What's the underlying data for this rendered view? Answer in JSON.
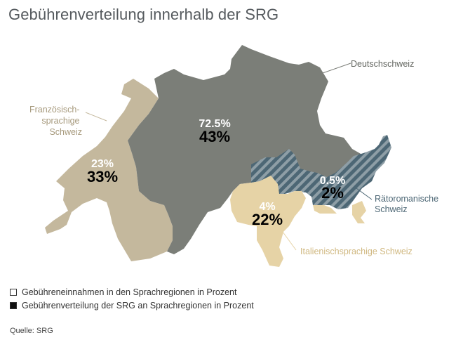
{
  "title": "Gebührenverteilung innerhalb der SRG",
  "regions": [
    {
      "key": "de",
      "label": "Deutschschweiz",
      "income": "72.5%",
      "distribution": "43%",
      "color": "#7b7e78"
    },
    {
      "key": "fr",
      "label": "Französisch-sprachige Schweiz",
      "label_lines": [
        "Französisch-",
        "sprachige",
        "Schweiz"
      ],
      "income": "23%",
      "distribution": "33%",
      "color": "#c4b89d"
    },
    {
      "key": "it",
      "label": "Italienischsprachige Schweiz",
      "income": "4%",
      "distribution": "22%",
      "color": "#e6d3a6"
    },
    {
      "key": "rm",
      "label": "Rätoromanische Schweiz",
      "label_lines": [
        "Rätoromanische",
        "Schweiz"
      ],
      "income": "0.5%",
      "distribution": "2%",
      "color": "#4d6775"
    }
  ],
  "legend": {
    "income": "Gebühreneinnahmen in den Sprachregionen in Prozent",
    "distribution": "Gebührenverteilung der SRG an Sprachregionen in Prozent"
  },
  "source": "Quelle: SRG"
}
